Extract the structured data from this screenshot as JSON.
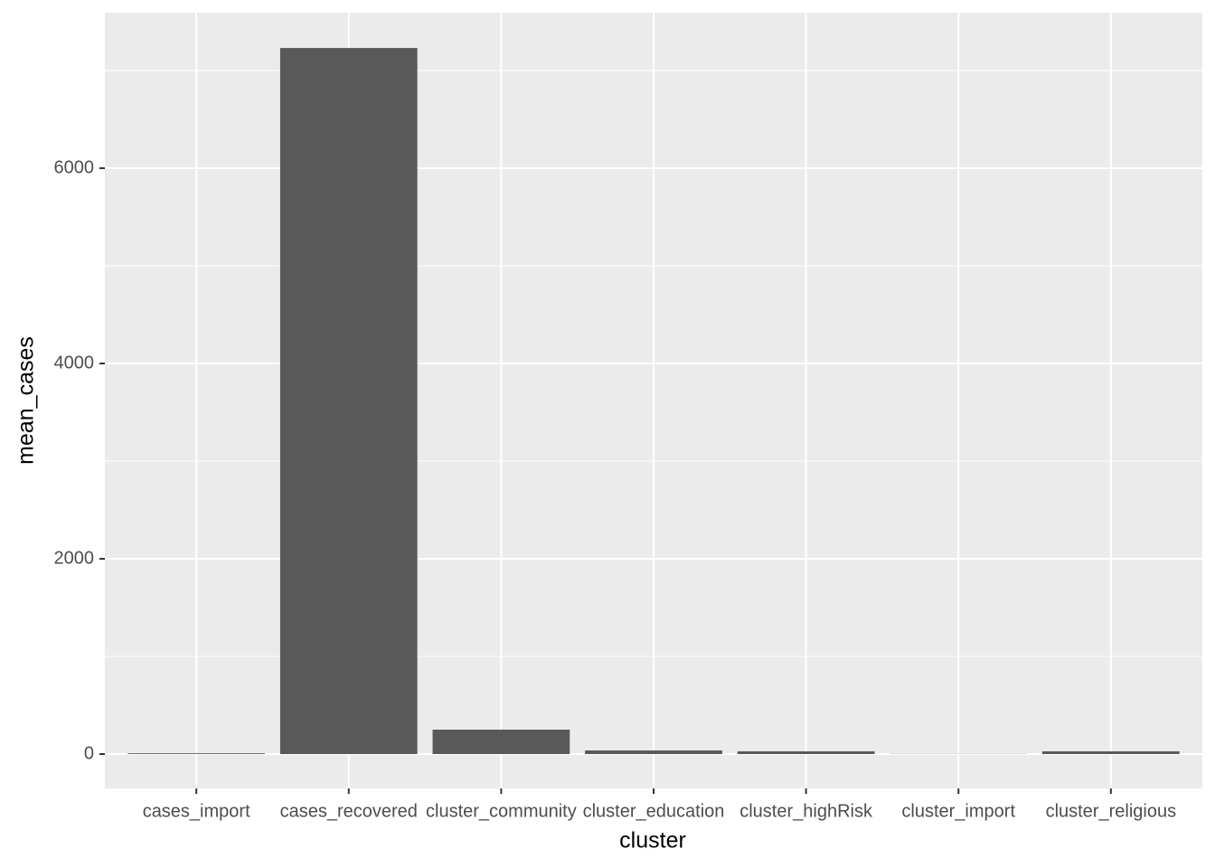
{
  "chart_data": {
    "type": "bar",
    "x_label": "cluster",
    "y_label": "mean_cases",
    "categories": [
      "cases_import",
      "cases_recovered",
      "cluster_community",
      "cluster_education",
      "cluster_highRisk",
      "cluster_import",
      "cluster_religious"
    ],
    "values": [
      8,
      7231,
      250,
      37,
      28,
      2,
      28
    ],
    "color": "#595959",
    "ylim": [
      -352,
      7593
    ],
    "yticks": [
      0,
      2000,
      4000,
      6000
    ],
    "grid": true
  }
}
